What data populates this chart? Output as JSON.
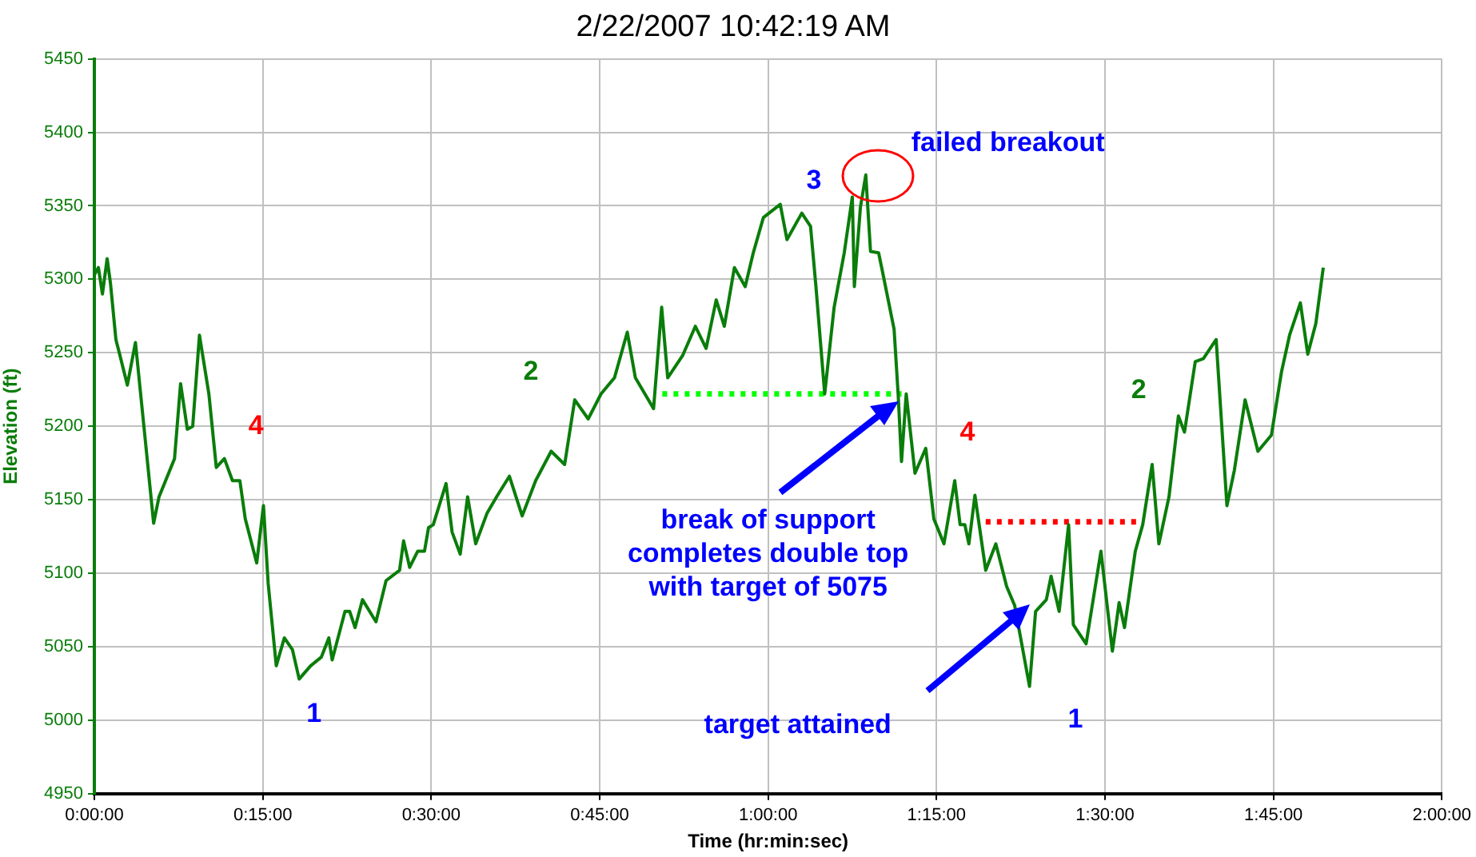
{
  "chart_data": {
    "type": "line",
    "title": "2/22/2007 10:42:19 AM",
    "xlabel": "Time (hr:min:sec)",
    "ylabel": "Elevation (ft)",
    "xlim": [
      0,
      2
    ],
    "xticks": [
      {
        "value": 0,
        "label": "0:00:00"
      },
      {
        "value": 0.25,
        "label": "0:15:00"
      },
      {
        "value": 0.5,
        "label": "0:30:00"
      },
      {
        "value": 0.75,
        "label": "0:45:00"
      },
      {
        "value": 1,
        "label": "1:00:00"
      },
      {
        "value": 1.25,
        "label": "1:15:00"
      },
      {
        "value": 1.5,
        "label": "1:30:00"
      },
      {
        "value": 1.75,
        "label": "1:45:00"
      },
      {
        "value": 2,
        "label": "2:00:00"
      }
    ],
    "ylim": [
      4950,
      5450
    ],
    "yticks": [
      4950,
      5000,
      5050,
      5100,
      5150,
      5200,
      5250,
      5300,
      5350,
      5400,
      5450
    ],
    "grid": true,
    "legend": false,
    "marker": "none",
    "series": [
      {
        "color": "#0a7d0a",
        "line_style": "solid",
        "x": [
          0,
          0.006,
          0.012,
          0.019,
          0.024,
          0.032,
          0.037,
          0.049,
          0.061,
          0.072,
          0.088,
          0.096,
          0.119,
          0.128,
          0.138,
          0.146,
          0.156,
          0.17,
          0.181,
          0.193,
          0.205,
          0.216,
          0.224,
          0.241,
          0.251,
          0.258,
          0.27,
          0.282,
          0.294,
          0.304,
          0.321,
          0.337,
          0.348,
          0.353,
          0.372,
          0.379,
          0.387,
          0.398,
          0.418,
          0.433,
          0.453,
          0.459,
          0.468,
          0.48,
          0.49,
          0.496,
          0.503,
          0.522,
          0.531,
          0.543,
          0.554,
          0.566,
          0.583,
          0.597,
          0.616,
          0.635,
          0.655,
          0.678,
          0.698,
          0.713,
          0.733,
          0.752,
          0.772,
          0.791,
          0.803,
          0.83,
          0.842,
          0.851,
          0.873,
          0.892,
          0.908,
          0.923,
          0.935,
          0.95,
          0.966,
          0.978,
          0.993,
          1.018,
          1.028,
          1.05,
          1.063,
          1.071,
          1.084,
          1.098,
          1.113,
          1.125,
          1.128,
          1.137,
          1.145,
          1.152,
          1.164,
          1.169,
          1.187,
          1.193,
          1.198,
          1.205,
          1.218,
          1.234,
          1.246,
          1.261,
          1.277,
          1.285,
          1.292,
          1.298,
          1.307,
          1.323,
          1.338,
          1.354,
          1.366,
          1.378,
          1.388,
          1.397,
          1.413,
          1.42,
          1.432,
          1.446,
          1.453,
          1.472,
          1.494,
          1.511,
          1.521,
          1.529,
          1.545,
          1.556,
          1.57,
          1.58,
          1.595,
          1.609,
          1.618,
          1.634,
          1.646,
          1.665,
          1.681,
          1.692,
          1.708,
          1.727,
          1.747,
          1.762,
          1.774,
          1.79,
          1.801,
          1.813,
          1.824
        ],
        "values": [
          5303,
          5308,
          5290,
          5314,
          5297,
          5259,
          5250,
          5228,
          5257,
          5207,
          5134,
          5152,
          5178,
          5229,
          5198,
          5200,
          5262,
          5222,
          5172,
          5178,
          5163,
          5163,
          5137,
          5107,
          5146,
          5093,
          5037,
          5056,
          5048,
          5028,
          5037,
          5043,
          5056,
          5041,
          5074,
          5074,
          5063,
          5082,
          5067,
          5095,
          5102,
          5122,
          5104,
          5115,
          5115,
          5131,
          5133,
          5161,
          5128,
          5113,
          5152,
          5120,
          5141,
          5152,
          5166,
          5139,
          5163,
          5183,
          5174,
          5218,
          5205,
          5222,
          5233,
          5264,
          5233,
          5212,
          5281,
          5233,
          5248,
          5268,
          5253,
          5286,
          5268,
          5308,
          5295,
          5318,
          5342,
          5351,
          5327,
          5345,
          5336,
          5295,
          5222,
          5281,
          5318,
          5356,
          5295,
          5349,
          5371,
          5319,
          5318,
          5307,
          5266,
          5222,
          5176,
          5222,
          5168,
          5185,
          5137,
          5120,
          5163,
          5133,
          5133,
          5120,
          5153,
          5102,
          5120,
          5091,
          5078,
          5048,
          5023,
          5074,
          5082,
          5098,
          5074,
          5133,
          5065,
          5052,
          5115,
          5047,
          5080,
          5063,
          5115,
          5133,
          5174,
          5120,
          5152,
          5207,
          5196,
          5244,
          5246,
          5259,
          5146,
          5170,
          5218,
          5183,
          5194,
          5237,
          5262,
          5284,
          5249,
          5270,
          5308
        ]
      },
      {
        "color": "#00ff00",
        "line_style": "dotted",
        "x": [
          0.843,
          1.198
        ],
        "values": [
          5222,
          5222
        ]
      },
      {
        "color": "#ff0000",
        "line_style": "dotted",
        "x": [
          1.323,
          1.548
        ],
        "values": [
          5135,
          5135
        ]
      }
    ],
    "annotations": [
      "4",
      "1",
      "2",
      "3",
      "failed breakout",
      "4",
      "2",
      "1",
      "break of support\ncompletes double top\nwith target of 5075",
      "target attained"
    ]
  }
}
